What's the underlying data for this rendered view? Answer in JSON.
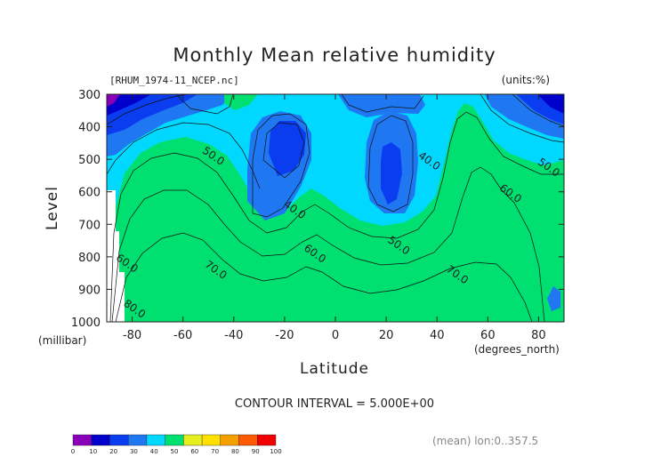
{
  "chart_data": {
    "type": "heatmap",
    "title": "Monthly Mean relative humidity",
    "file_label": "[RHUM_1974-11_NCEP.nc]",
    "units_label": "(units:%)",
    "xlabel": "Latitude",
    "x_units_label": "(degrees_north)",
    "ylabel": "Level",
    "y_units_label": "(millibar)",
    "xlim": [
      -90,
      90
    ],
    "ylim": [
      1000,
      300
    ],
    "x_ticks": [
      -80,
      -60,
      -40,
      -20,
      0,
      20,
      40,
      60,
      80
    ],
    "y_ticks": [
      300,
      400,
      500,
      600,
      700,
      800,
      900,
      1000
    ],
    "contour_interval_text": "CONTOUR INTERVAL = 5.000E+00",
    "averaging_note": "(mean) lon:0..357.5",
    "contour_labels": [
      {
        "text": "50.0",
        "x": -48,
        "y": 490
      },
      {
        "text": "40.0",
        "x": -16,
        "y": 655
      },
      {
        "text": "40.0",
        "x": 37,
        "y": 505
      },
      {
        "text": "50.0",
        "x": 84,
        "y": 525
      },
      {
        "text": "60.0",
        "x": 69,
        "y": 605
      },
      {
        "text": "50.0",
        "x": 25,
        "y": 765
      },
      {
        "text": "60.0",
        "x": -8,
        "y": 790
      },
      {
        "text": "70.0",
        "x": -47,
        "y": 840
      },
      {
        "text": "70.0",
        "x": 48,
        "y": 855
      },
      {
        "text": "60.0",
        "x": -82,
        "y": 820
      },
      {
        "text": "80.0",
        "x": -79,
        "y": 960
      }
    ],
    "colorbar": {
      "ticks": [
        "0",
        "10",
        "20",
        "30",
        "40",
        "50",
        "60",
        "70",
        "80",
        "90",
        "100"
      ],
      "colors": [
        "#8a00b8",
        "#0000cc",
        "#0a3cf0",
        "#1f78f2",
        "#00d8ff",
        "#00e070",
        "#e6f020",
        "#ffe000",
        "#f5a000",
        "#ff5a00",
        "#f00000"
      ]
    }
  }
}
